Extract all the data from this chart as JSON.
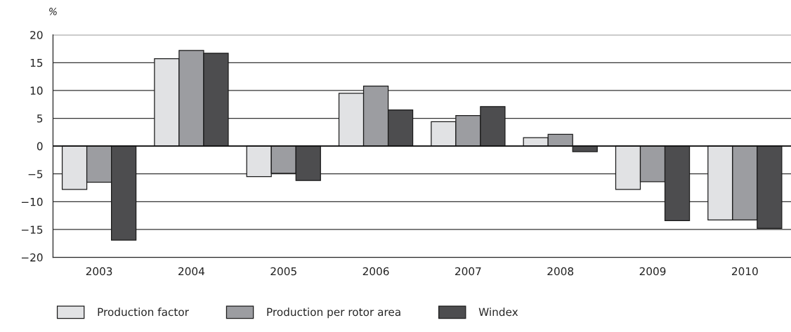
{
  "chart_data": {
    "type": "bar",
    "ylabel": "%",
    "categories": [
      "2003",
      "2004",
      "2005",
      "2006",
      "2007",
      "2008",
      "2009",
      "2010"
    ],
    "series": [
      {
        "name": "Production factor",
        "color": "#e1e2e4",
        "values": [
          -7.8,
          15.7,
          -5.5,
          9.5,
          4.4,
          1.5,
          -7.8,
          -13.3
        ]
      },
      {
        "name": "Production per rotor area",
        "color": "#9c9da1",
        "values": [
          -6.5,
          17.2,
          -4.9,
          10.8,
          5.5,
          2.1,
          -6.4,
          -13.3
        ]
      },
      {
        "name": "Windex",
        "color": "#4d4d4f",
        "values": [
          -16.9,
          16.7,
          -6.2,
          6.5,
          7.1,
          -1.0,
          -13.4,
          -14.8
        ]
      }
    ],
    "ylim": [
      -20,
      20
    ],
    "yticks": [
      {
        "value": -20,
        "label": "−20"
      },
      {
        "value": -15,
        "label": "−15"
      },
      {
        "value": -10,
        "label": "−10"
      },
      {
        "value": -5,
        "label": "−5"
      },
      0,
      5,
      10,
      15,
      20
    ],
    "grid": "y",
    "legend": "bottom left"
  }
}
